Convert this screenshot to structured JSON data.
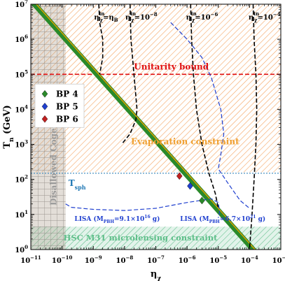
{
  "chart_data": {
    "type": "line",
    "xlabel": "η",
    "xlabel_sub": "χ",
    "ylabel": "T",
    "ylabel_sub": "n",
    "ylabel_unit": " (GeV)",
    "x_scale": "log",
    "y_scale": "log",
    "xlim": [
      1e-11,
      0.001
    ],
    "ylim": [
      1,
      10000000.0
    ],
    "x_ticks": [
      {
        "value": 1e-11,
        "base": "10",
        "exp": "−11"
      },
      {
        "value": 1e-10,
        "base": "10",
        "exp": "−10"
      },
      {
        "value": 1e-09,
        "base": "10",
        "exp": "−9"
      },
      {
        "value": 1e-08,
        "base": "10",
        "exp": "−8"
      },
      {
        "value": 1e-07,
        "base": "10",
        "exp": "−7"
      },
      {
        "value": 1e-06,
        "base": "10",
        "exp": "−6"
      },
      {
        "value": 1e-05,
        "base": "10",
        "exp": "−5"
      },
      {
        "value": 0.0001,
        "base": "10",
        "exp": "−4"
      },
      {
        "value": 0.001,
        "base": "10",
        "exp": "−3"
      }
    ],
    "y_ticks": [
      {
        "value": 1,
        "base": "10",
        "exp": "0"
      },
      {
        "value": 10,
        "base": "10",
        "exp": "1"
      },
      {
        "value": 100,
        "base": "10",
        "exp": "2"
      },
      {
        "value": 1000,
        "base": "10",
        "exp": "3"
      },
      {
        "value": 10000,
        "base": "10",
        "exp": "4"
      },
      {
        "value": 100000,
        "base": "10",
        "exp": "5"
      },
      {
        "value": 1000000,
        "base": "10",
        "exp": "6"
      },
      {
        "value": 10000000,
        "base": "10",
        "exp": "7"
      }
    ],
    "regions": [
      {
        "label": "Evaporation constraint",
        "color": "#f4a460",
        "x": [
          1e-11,
          0.001
        ],
        "y": [
          160,
          10000000.0
        ]
      },
      {
        "label": "Disallowed Cogenesis",
        "color": "#8c8c8c",
        "x": [
          1e-11,
          1.3e-10
        ],
        "y": [
          1,
          10000000.0
        ]
      },
      {
        "label": "HSC M31 microlensing constraint",
        "color": "#5fbf8a",
        "x": [
          1e-11,
          0.001
        ],
        "y": [
          1,
          4.5
        ]
      }
    ],
    "horizontal_lines": [
      {
        "label": "Unitarity bound",
        "y": 100000,
        "color": "#e01010"
      },
      {
        "label": "T_sph",
        "y": 150,
        "color": "#1f77b4"
      }
    ],
    "band_label": "Disallowed Cogenesis",
    "band_color": "#2a8a2a",
    "band_lower": [
      [
        1e-11,
        10000000.0
      ],
      [
        0.0001,
        1
      ]
    ],
    "band_upper": [
      [
        1.7e-11,
        10000000.0
      ],
      [
        0.00017,
        1
      ]
    ],
    "band_centre": [
      [
        1.3e-11,
        10000000.0
      ],
      [
        0.00013,
        1
      ]
    ],
    "orange_line": [
      [
        1.5e-11,
        10000000.0
      ],
      [
        0.00015,
        1
      ]
    ],
    "contours": [
      {
        "label": "η_χ^in = η_B",
        "label_main": "η",
        "label_sub": "χ",
        "label_sup": "in",
        "label_rest": "=η",
        "label_rest_sub": "B",
        "points": [
          [
            1.5e-09,
            10000000.0
          ],
          [
            1.6e-09,
            3000000.0
          ],
          [
            2e-09,
            1000000.0
          ],
          [
            2e-09,
            300000.0
          ],
          [
            1.6e-09,
            100000.0
          ]
        ]
      },
      {
        "label": "η_χ^in = 10^-8",
        "label_main": "η",
        "label_sub": "χ",
        "label_sup": "in",
        "label_rest": "=10",
        "label_rest_sup": "−8",
        "points": [
          [
            1.5e-08,
            10000000.0
          ],
          [
            1.6e-08,
            1000000.0
          ],
          [
            2e-08,
            100000.0
          ],
          [
            2.5e-08,
            10000.0
          ],
          [
            2.3e-08,
            5000.0
          ],
          [
            1.5e-08,
            2000.0
          ],
          [
            8e-09,
            1000.0
          ]
        ]
      },
      {
        "label": "η_χ^in = 10^-6",
        "label_main": "η",
        "label_sub": "χ",
        "label_sup": "in",
        "label_rest": "=10",
        "label_rest_sup": "−6",
        "points": [
          [
            1.3e-06,
            10000000.0
          ],
          [
            1.4e-06,
            1000000.0
          ],
          [
            1.6e-06,
            100000.0
          ],
          [
            2e-06,
            10000.0
          ],
          [
            3e-06,
            1000.0
          ],
          [
            5e-06,
            150
          ],
          [
            8e-06,
            40
          ],
          [
            1e-05,
            15
          ]
        ]
      },
      {
        "label": "η_χ^in = 10^-4",
        "label_main": "η",
        "label_sub": "χ",
        "label_sup": "in",
        "label_rest": "=10",
        "label_rest_sup": "−4",
        "points": [
          [
            0.00013,
            10000000.0
          ],
          [
            0.00014,
            1000000.0
          ],
          [
            0.00016,
            100000.0
          ],
          [
            0.00017,
            10000.0
          ],
          [
            0.00016,
            1000.0
          ],
          [
            0.00014,
            100
          ],
          [
            0.00012,
            10
          ],
          [
            0.0001,
            1
          ]
        ]
      }
    ],
    "lisa_curves": [
      {
        "label": "LISA (M_PBH=9.1×10^16 g)",
        "label_main": "LISA (M",
        "label_sub": "PBH",
        "label_rest": "=9.1×10",
        "label_rest_sup": "16",
        "label_tail": " g)",
        "points": [
          [
            1.3e-10,
            20
          ],
          [
            2e-10,
            16
          ],
          [
            1e-09,
            14
          ],
          [
            1e-08,
            13
          ],
          [
            1e-07,
            15
          ],
          [
            1e-06,
            22
          ],
          [
            6e-06,
            28
          ],
          [
            1e-05,
            22
          ],
          [
            1.1e-05,
            12
          ],
          [
            1e-05,
            8
          ]
        ]
      },
      {
        "label": "LISA (M_PBH=6.7×10^21 g)",
        "label_main": "LISA (M",
        "label_sub": "PBH",
        "label_rest": "=6.7×10",
        "label_rest_sup": "21",
        "label_tail": " g)",
        "points": [
          [
            3e-07,
            3000000.0
          ],
          [
            1e-06,
            1000000.0
          ],
          [
            3e-06,
            300000.0
          ],
          [
            6e-06,
            80000.0
          ],
          [
            1.2e-05,
            10000.0
          ],
          [
            1.5e-05,
            2000.0
          ],
          [
            1.2e-05,
            500
          ],
          [
            1e-05,
            200
          ],
          [
            2e-05,
            80
          ],
          [
            5e-05,
            25
          ],
          [
            0.0001,
            15
          ]
        ]
      }
    ],
    "benchmark_points": [
      {
        "name": "BP 4",
        "x": 3e-06,
        "y": 25,
        "color": "#2a8a2a"
      },
      {
        "name": "BP 5",
        "x": 1.25e-06,
        "y": 65,
        "color": "#1f3fcf"
      },
      {
        "name": "BP 6",
        "x": 5.7e-07,
        "y": 125,
        "color": "#c02020"
      }
    ],
    "legend": {
      "placement": "middle-left",
      "entries": [
        "BP 4",
        "BP 5",
        "BP 6"
      ]
    },
    "annotations": {
      "unitarity": "Unitarity bound",
      "evaporation": "Evaporation constraint",
      "disallowed": "Disallowed Cogenesis",
      "hsc": "HSC M31 microlensing constraint",
      "tsph_main": "T",
      "tsph_sub": "sph"
    }
  }
}
